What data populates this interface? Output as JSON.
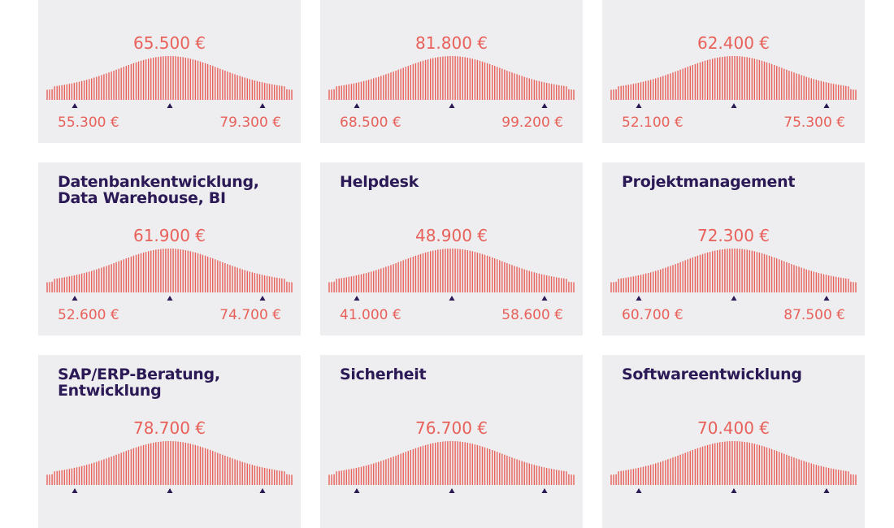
{
  "cards": [
    {
      "median": "65.500 €",
      "low": "55.300 €",
      "high": "79.300 €"
    },
    {
      "median": "81.800 €",
      "low": "68.500 €",
      "high": "99.200 €"
    },
    {
      "median": "62.400 €",
      "low": "52.100 €",
      "high": "75.300 €"
    },
    {
      "title": "Datenbankentwicklung, Data Warehouse, BI",
      "median": "61.900 €",
      "low": "52.600 €",
      "high": "74.700 €"
    },
    {
      "title": "Helpdesk",
      "median": "48.900 €",
      "low": "41.000 €",
      "high": "58.600 €"
    },
    {
      "title": "Projektmanagement",
      "median": "72.300 €",
      "low": "60.700 €",
      "high": "87.500 €"
    },
    {
      "title": "SAP/ERP-Beratung, Entwicklung",
      "median": "78.700 €"
    },
    {
      "title": "Sicherheit",
      "median": "76.700 €"
    },
    {
      "title": "Softwareentwicklung",
      "median": "70.400 €"
    }
  ]
}
